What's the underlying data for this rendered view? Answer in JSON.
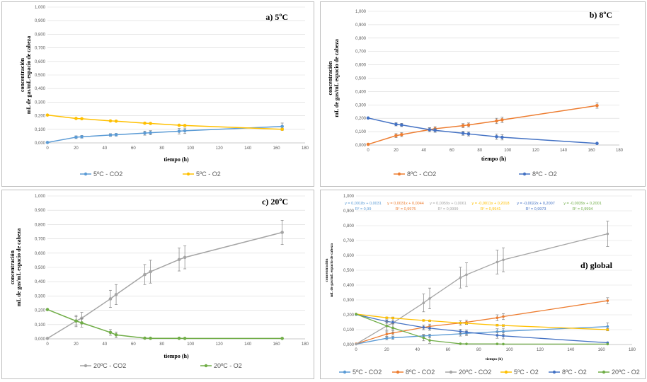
{
  "colors": {
    "co2_5": "#5b9bd5",
    "o2_5": "#ffc000",
    "co2_8": "#ed7d31",
    "o2_8": "#4472c4",
    "co2_20": "#a5a5a5",
    "o2_20": "#70ad47",
    "grid": "#d9d9d9",
    "errorbar": "#7f7f7f"
  },
  "chart_data": [
    {
      "type": "line",
      "title": "a) 5ºC",
      "xlabel": "tiempo (h)",
      "ylabel": [
        "concentración",
        "mL de gas/mL espacio de cabeza"
      ],
      "xlim": [
        0,
        180
      ],
      "ylim": [
        0,
        1
      ],
      "xticks": [
        "0",
        "20",
        "40",
        "60",
        "80",
        "100",
        "120",
        "140",
        "160",
        "180"
      ],
      "yticks": [
        "0,000",
        "0,100",
        "0,200",
        "0,300",
        "0,400",
        "0,500",
        "0,600",
        "0,700",
        "0,800",
        "0,900",
        "1,000"
      ],
      "legend_position": "bottom",
      "series": [
        {
          "name": "5ºC - CO2",
          "color": "co2_5",
          "points": [
            [
              0,
              0.003
            ],
            [
              20,
              0.042
            ],
            [
              24,
              0.045
            ],
            [
              44,
              0.058
            ],
            [
              48,
              0.06
            ],
            [
              68,
              0.072
            ],
            [
              72,
              0.075
            ],
            [
              92,
              0.086
            ],
            [
              96,
              0.089
            ],
            [
              164,
              0.121
            ]
          ],
          "errors": [
            0.003,
            0.01,
            0.01,
            0.01,
            0.01,
            0.015,
            0.015,
            0.02,
            0.02,
            0.025
          ]
        },
        {
          "name": "5ºC - O2",
          "color": "o2_5",
          "points": [
            [
              0,
              0.205
            ],
            [
              20,
              0.18
            ],
            [
              24,
              0.178
            ],
            [
              44,
              0.162
            ],
            [
              48,
              0.16
            ],
            [
              68,
              0.145
            ],
            [
              72,
              0.143
            ],
            [
              92,
              0.13
            ],
            [
              96,
              0.128
            ],
            [
              164,
              0.1
            ]
          ],
          "errors": [
            0.003,
            0.005,
            0.005,
            0.005,
            0.005,
            0.006,
            0.006,
            0.006,
            0.006,
            0.008
          ]
        }
      ]
    },
    {
      "type": "line",
      "title": "b) 8ºC",
      "xlabel": "tiempo (h)",
      "ylabel": [
        "concentración",
        "mL de gas/mL espacio de cabeza"
      ],
      "xlim": [
        0,
        180
      ],
      "ylim": [
        0,
        1
      ],
      "xticks": [
        "0",
        "20",
        "40",
        "60",
        "80",
        "100",
        "120",
        "140",
        "160",
        "180"
      ],
      "yticks": [
        "0,000",
        "0,100",
        "0,200",
        "0,300",
        "0,400",
        "0,500",
        "0,600",
        "0,700",
        "0,800",
        "0,900",
        "1,000"
      ],
      "legend_position": "bottom",
      "series": [
        {
          "name": "8ºC - CO2",
          "color": "co2_8",
          "points": [
            [
              0,
              0.005
            ],
            [
              20,
              0.07
            ],
            [
              24,
              0.078
            ],
            [
              44,
              0.115
            ],
            [
              48,
              0.122
            ],
            [
              68,
              0.145
            ],
            [
              72,
              0.15
            ],
            [
              92,
              0.18
            ],
            [
              96,
              0.188
            ],
            [
              164,
              0.295
            ]
          ],
          "errors": [
            0.003,
            0.015,
            0.015,
            0.015,
            0.015,
            0.015,
            0.015,
            0.02,
            0.02,
            0.02
          ]
        },
        {
          "name": "8ºC - O2",
          "color": "o2_8",
          "points": [
            [
              0,
              0.202
            ],
            [
              20,
              0.155
            ],
            [
              24,
              0.15
            ],
            [
              44,
              0.115
            ],
            [
              48,
              0.11
            ],
            [
              68,
              0.088
            ],
            [
              72,
              0.083
            ],
            [
              92,
              0.062
            ],
            [
              96,
              0.058
            ],
            [
              164,
              0.012
            ]
          ],
          "errors": [
            0.003,
            0.012,
            0.012,
            0.015,
            0.015,
            0.015,
            0.015,
            0.02,
            0.02,
            0.004
          ]
        }
      ]
    },
    {
      "type": "line",
      "title": "c) 20ºC",
      "xlabel": "tiempo (h)",
      "ylabel": [
        "concentración",
        "mL de gas/mL espacio de cabeza"
      ],
      "xlim": [
        0,
        180
      ],
      "ylim": [
        0,
        1
      ],
      "xticks": [
        "0",
        "20",
        "40",
        "60",
        "80",
        "100",
        "120",
        "140",
        "160",
        "180"
      ],
      "yticks": [
        "0,000",
        "0,100",
        "0,200",
        "0,300",
        "0,400",
        "0,500",
        "0,600",
        "0,700",
        "0,800",
        "0,900",
        "1,000"
      ],
      "legend_position": "bottom",
      "series": [
        {
          "name": "20ºC - CO2",
          "color": "co2_20",
          "points": [
            [
              0,
              0.003
            ],
            [
              20,
              0.125
            ],
            [
              24,
              0.145
            ],
            [
              44,
              0.28
            ],
            [
              48,
              0.31
            ],
            [
              68,
              0.45
            ],
            [
              72,
              0.47
            ],
            [
              92,
              0.555
            ],
            [
              96,
              0.57
            ],
            [
              164,
              0.745
            ]
          ],
          "errors": [
            0.003,
            0.04,
            0.04,
            0.06,
            0.07,
            0.07,
            0.08,
            0.08,
            0.08,
            0.085
          ]
        },
        {
          "name": "20ºC - O2",
          "color": "o2_20",
          "points": [
            [
              0,
              0.205
            ],
            [
              20,
              0.125
            ],
            [
              24,
              0.112
            ],
            [
              44,
              0.045
            ],
            [
              48,
              0.028
            ],
            [
              68,
              0.005
            ],
            [
              72,
              0.004
            ],
            [
              92,
              0.004
            ],
            [
              96,
              0.003
            ],
            [
              164,
              0.003
            ]
          ],
          "errors": [
            0.003,
            0.03,
            0.03,
            0.02,
            0.02,
            0.003,
            0.003,
            0.003,
            0.003,
            0.003
          ]
        }
      ]
    },
    {
      "type": "line",
      "title": "d) global",
      "xlabel": "tiempo (h)",
      "ylabel": [
        "concentración",
        "mL de gas/mL espacio de cabeza"
      ],
      "xlim": [
        0,
        180
      ],
      "ylim": [
        0,
        1
      ],
      "xticks": [
        "0",
        "20",
        "40",
        "60",
        "80",
        "100",
        "120",
        "140",
        "160",
        "180"
      ],
      "yticks": [
        "0,000",
        "0,100",
        "0,200",
        "0,300",
        "0,400",
        "0,500",
        "0,600",
        "0,700",
        "0,800",
        "0,900",
        "1,000"
      ],
      "legend_position": "bottom",
      "equations": [
        {
          "eq": "y = 0,0018x + 0,0031",
          "r2": "R² = 0,99",
          "color": "co2_5"
        },
        {
          "eq": "y = 0,0031x + 0,0044",
          "r2": "R² = 0,9975",
          "color": "co2_8"
        },
        {
          "eq": "y = 0,0059x + 0,0061",
          "r2": "R² = 0,9999",
          "color": "co2_20"
        },
        {
          "eq": "y = -0,0011x + 0,2018",
          "r2": "R² = 0,9941",
          "color": "o2_5"
        },
        {
          "eq": "y = -0,0022x + 0,2007",
          "r2": "R² = 0,9973",
          "color": "o2_8"
        },
        {
          "eq": "y = -0,0039x + 0,2001",
          "r2": "R² = 0,9994",
          "color": "o2_20"
        }
      ],
      "series_refs": [
        {
          "chart": 0,
          "series": 0
        },
        {
          "chart": 1,
          "series": 0
        },
        {
          "chart": 2,
          "series": 0
        },
        {
          "chart": 0,
          "series": 1
        },
        {
          "chart": 1,
          "series": 1
        },
        {
          "chart": 2,
          "series": 1
        }
      ]
    }
  ]
}
